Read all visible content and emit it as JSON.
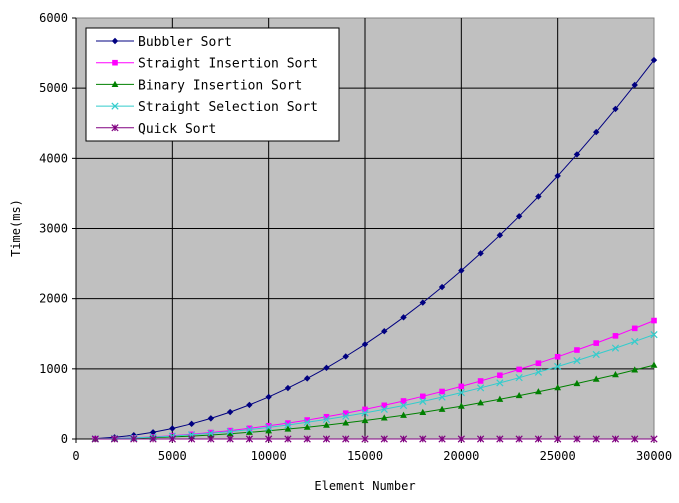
{
  "chart_data": {
    "type": "line",
    "xlabel": "Element Number",
    "ylabel": "Time(ms)",
    "xlim": [
      0,
      30000
    ],
    "ylim": [
      0,
      6000
    ],
    "xticks": [
      0,
      5000,
      10000,
      15000,
      20000,
      25000,
      30000
    ],
    "yticks": [
      0,
      1000,
      2000,
      3000,
      4000,
      5000,
      6000
    ],
    "grid": true,
    "plot_background": "#c0c0c0",
    "legend_position": "top-left",
    "x": [
      1000,
      2000,
      3000,
      4000,
      5000,
      6000,
      7000,
      8000,
      9000,
      10000,
      11000,
      12000,
      13000,
      14000,
      15000,
      16000,
      17000,
      18000,
      19000,
      20000,
      21000,
      22000,
      23000,
      24000,
      25000,
      26000,
      27000,
      28000,
      29000,
      30000
    ],
    "series": [
      {
        "name": "Bubbler Sort",
        "color": "#000080",
        "marker": "diamond",
        "values": [
          6,
          24,
          54,
          96,
          150,
          216,
          294,
          384,
          486,
          600,
          726,
          864,
          1014,
          1176,
          1350,
          1536,
          1734,
          1944,
          2166,
          2400,
          2646,
          2904,
          3174,
          3456,
          3750,
          4056,
          4374,
          4704,
          5046,
          5400
        ]
      },
      {
        "name": "Straight Insertion Sort",
        "color": "#ff00ff",
        "marker": "square",
        "values": [
          2,
          7,
          17,
          30,
          47,
          67,
          92,
          120,
          152,
          188,
          227,
          270,
          317,
          368,
          422,
          480,
          542,
          608,
          677,
          750,
          827,
          908,
          992,
          1080,
          1172,
          1268,
          1367,
          1470,
          1577,
          1688
        ]
      },
      {
        "name": "Binary Insertion Sort",
        "color": "#008000",
        "marker": "triangle",
        "values": [
          1,
          5,
          11,
          19,
          30,
          42,
          57,
          75,
          95,
          117,
          142,
          168,
          198,
          229,
          263,
          300,
          338,
          379,
          423,
          468,
          516,
          567,
          619,
          674,
          731,
          791,
          853,
          917,
          984,
          1053
        ]
      },
      {
        "name": "Straight Selection Sort",
        "color": "#33cccc",
        "marker": "x",
        "values": [
          2,
          7,
          15,
          27,
          41,
          60,
          81,
          106,
          134,
          165,
          200,
          238,
          279,
          324,
          372,
          423,
          478,
          536,
          597,
          661,
          729,
          800,
          874,
          952,
          1033,
          1117,
          1205,
          1296,
          1390,
          1488
        ]
      },
      {
        "name": "Quick Sort",
        "color": "#800080",
        "marker": "star",
        "values": [
          0,
          0,
          0,
          0,
          0,
          0,
          0,
          0,
          0,
          0,
          0,
          0,
          0,
          0,
          0,
          0,
          0,
          0,
          0,
          0,
          0,
          0,
          0,
          0,
          0,
          0,
          0,
          0,
          0,
          0
        ]
      }
    ]
  }
}
